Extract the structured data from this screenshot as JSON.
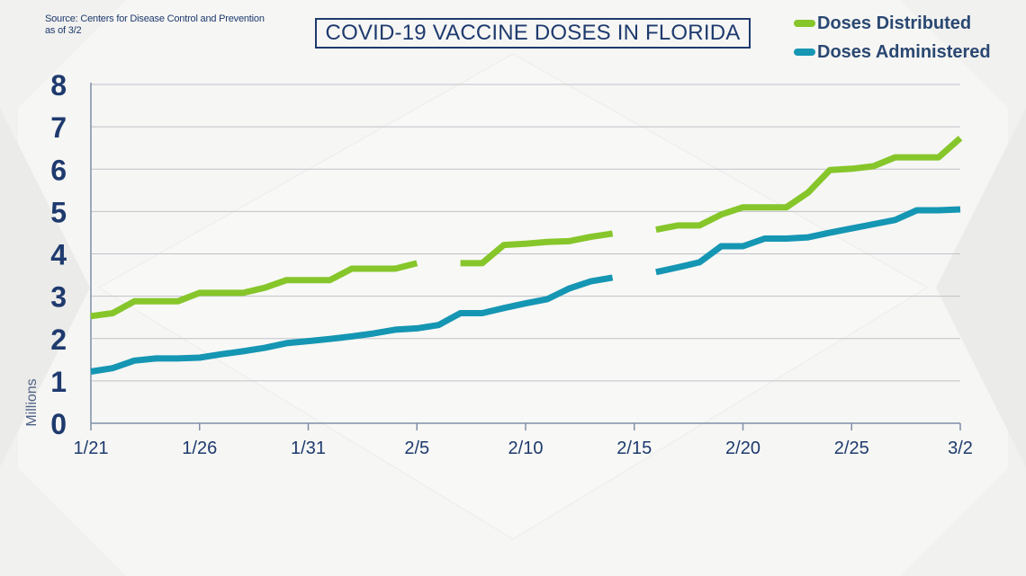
{
  "source_note": {
    "line1": "Source: Centers for Disease Control and Prevention",
    "line2": "as of 3/2"
  },
  "colors": {
    "distributed": "#86c62a",
    "administered": "#1596b3",
    "axis_text": "#1e3a6e",
    "grid": "#bfc2c8"
  },
  "chart_data": {
    "type": "line",
    "title": "COVID-19 VACCINE DOSES IN FLORIDA",
    "ylabel": "Millions",
    "ylim": [
      0,
      8
    ],
    "yticks": [
      0,
      1,
      2,
      3,
      4,
      5,
      6,
      7,
      8
    ],
    "xticks": [
      "1/21",
      "1/26",
      "1/31",
      "2/5",
      "2/10",
      "2/15",
      "2/20",
      "2/25",
      "3/2"
    ],
    "x": [
      "1/21",
      "1/22",
      "1/23",
      "1/24",
      "1/25",
      "1/26",
      "1/27",
      "1/28",
      "1/29",
      "1/30",
      "1/31",
      "2/1",
      "2/2",
      "2/3",
      "2/4",
      "2/5",
      "2/6",
      "2/7",
      "2/8",
      "2/9",
      "2/10",
      "2/11",
      "2/12",
      "2/13",
      "2/14",
      "2/15",
      "2/16",
      "2/17",
      "2/18",
      "2/19",
      "2/20",
      "2/21",
      "2/22",
      "2/23",
      "2/24",
      "2/25",
      "2/26",
      "2/27",
      "2/28",
      "3/1",
      "3/2"
    ],
    "legend_position": "top-right",
    "series": [
      {
        "name": "Doses Distributed",
        "color": "#86c62a",
        "values": [
          2.53,
          2.6,
          2.88,
          2.88,
          2.88,
          3.08,
          3.08,
          3.08,
          3.2,
          3.38,
          3.38,
          3.38,
          3.65,
          3.65,
          3.65,
          3.78,
          null,
          3.78,
          3.78,
          4.21,
          4.24,
          4.28,
          4.3,
          4.4,
          4.48,
          null,
          4.57,
          4.67,
          4.67,
          4.93,
          5.1,
          5.1,
          5.1,
          5.45,
          5.98,
          6.01,
          6.07,
          6.28,
          6.28,
          6.28,
          6.73
        ]
      },
      {
        "name": "Doses Administered",
        "color": "#1596b3",
        "values": [
          1.22,
          1.3,
          1.48,
          1.53,
          1.53,
          1.55,
          1.63,
          1.7,
          1.78,
          1.89,
          1.94,
          1.99,
          2.05,
          2.12,
          2.21,
          2.24,
          2.32,
          2.6,
          2.6,
          2.72,
          2.83,
          2.93,
          3.18,
          3.35,
          3.44,
          null,
          3.57,
          3.68,
          3.8,
          4.18,
          4.18,
          4.36,
          4.36,
          4.39,
          4.5,
          4.6,
          4.7,
          4.8,
          5.03,
          5.03,
          5.05
        ]
      }
    ]
  }
}
